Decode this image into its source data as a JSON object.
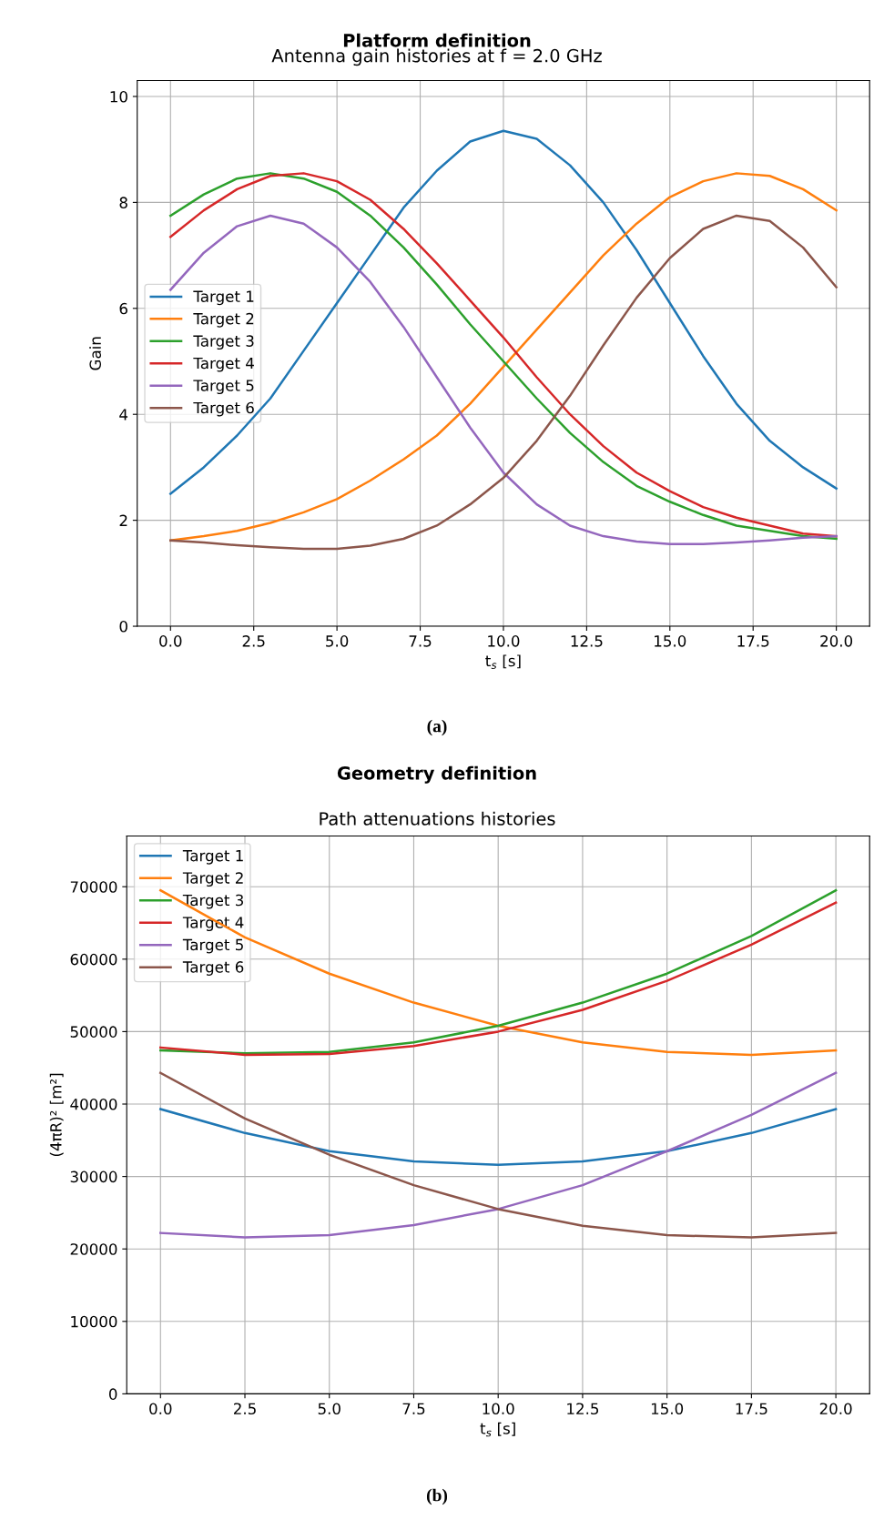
{
  "chart_data": [
    {
      "type": "line",
      "title": "Platform definition",
      "subtitle": "Antenna gain histories at f = 2.0 GHz",
      "xlabel": "t$_{s}$ [s]",
      "ylabel": "Gain",
      "annotations": [
        "(a)"
      ],
      "x": [
        0,
        1,
        2,
        3,
        4,
        5,
        6,
        7,
        8,
        9,
        10,
        11,
        12,
        13,
        14,
        15,
        16,
        17,
        18,
        19,
        20
      ],
      "xlim": [
        -1,
        21
      ],
      "xticks": [
        {
          "value": 0,
          "label": "0.0"
        },
        {
          "value": 2.5,
          "label": "2.5"
        },
        {
          "value": 5,
          "label": "5.0"
        },
        {
          "value": 7.5,
          "label": "7.5"
        },
        {
          "value": 10,
          "label": "10.0"
        },
        {
          "value": 12.5,
          "label": "12.5"
        },
        {
          "value": 15,
          "label": "15.0"
        },
        {
          "value": 17.5,
          "label": "17.5"
        },
        {
          "value": 20,
          "label": "20.0"
        }
      ],
      "ylim": [
        0,
        10.3
      ],
      "yticks": [
        0,
        2,
        4,
        6,
        8,
        10
      ],
      "grid": true,
      "legend": "left",
      "series": [
        {
          "name": "Target 1",
          "color": "#1f77b4",
          "values": [
            2.5,
            3.0,
            3.6,
            4.3,
            5.2,
            6.1,
            7.0,
            7.9,
            8.6,
            9.15,
            9.35,
            9.2,
            8.7,
            8.0,
            7.1,
            6.1,
            5.1,
            4.2,
            3.5,
            3.0,
            2.6
          ]
        },
        {
          "name": "Target 2",
          "color": "#ff7f0e",
          "values": [
            1.62,
            1.7,
            1.8,
            1.95,
            2.15,
            2.4,
            2.75,
            3.15,
            3.6,
            4.2,
            4.9,
            5.6,
            6.3,
            7.0,
            7.6,
            8.1,
            8.4,
            8.55,
            8.5,
            8.25,
            7.85
          ]
        },
        {
          "name": "Target 3",
          "color": "#2ca02c",
          "values": [
            7.75,
            8.15,
            8.45,
            8.55,
            8.45,
            8.2,
            7.75,
            7.15,
            6.45,
            5.7,
            5.0,
            4.3,
            3.65,
            3.1,
            2.65,
            2.35,
            2.1,
            1.9,
            1.8,
            1.7,
            1.65
          ]
        },
        {
          "name": "Target 4",
          "color": "#d62728",
          "values": [
            7.35,
            7.85,
            8.25,
            8.5,
            8.55,
            8.4,
            8.05,
            7.5,
            6.85,
            6.15,
            5.45,
            4.7,
            4.0,
            3.4,
            2.9,
            2.55,
            2.25,
            2.05,
            1.9,
            1.75,
            1.7
          ]
        },
        {
          "name": "Target 5",
          "color": "#9467bd",
          "values": [
            6.35,
            7.05,
            7.55,
            7.75,
            7.6,
            7.15,
            6.5,
            5.65,
            4.7,
            3.75,
            2.9,
            2.3,
            1.9,
            1.7,
            1.6,
            1.55,
            1.55,
            1.58,
            1.62,
            1.67,
            1.7
          ]
        },
        {
          "name": "Target 6",
          "color": "#8c564b",
          "values": [
            1.62,
            1.58,
            1.53,
            1.49,
            1.46,
            1.46,
            1.52,
            1.65,
            1.9,
            2.3,
            2.8,
            3.5,
            4.35,
            5.3,
            6.2,
            6.95,
            7.5,
            7.75,
            7.65,
            7.15,
            6.4
          ]
        }
      ]
    },
    {
      "type": "line",
      "title": "Geometry definition",
      "subtitle": "Path attenuations histories",
      "xlabel": "t$_{s}$ [s]",
      "ylabel": "(4πR)² [m²]",
      "annotations": [
        "(b)"
      ],
      "x": [
        0,
        2.5,
        5,
        7.5,
        10,
        12.5,
        15,
        17.5,
        20
      ],
      "xlim": [
        -1,
        21
      ],
      "xticks": [
        {
          "value": 0,
          "label": "0.0"
        },
        {
          "value": 2.5,
          "label": "2.5"
        },
        {
          "value": 5,
          "label": "5.0"
        },
        {
          "value": 7.5,
          "label": "7.5"
        },
        {
          "value": 10,
          "label": "10.0"
        },
        {
          "value": 12.5,
          "label": "12.5"
        },
        {
          "value": 15,
          "label": "15.0"
        },
        {
          "value": 17.5,
          "label": "17.5"
        },
        {
          "value": 20,
          "label": "20.0"
        }
      ],
      "ylim": [
        0,
        77000
      ],
      "yticks": [
        0,
        10000,
        20000,
        30000,
        40000,
        50000,
        60000,
        70000
      ],
      "grid": true,
      "legend": "top left",
      "series": [
        {
          "name": "Target 1",
          "color": "#1f77b4",
          "values": [
            39300,
            36000,
            33500,
            32100,
            31600,
            32100,
            33500,
            36000,
            39300
          ]
        },
        {
          "name": "Target 2",
          "color": "#ff7f0e",
          "values": [
            69500,
            63000,
            58000,
            54000,
            50800,
            48500,
            47200,
            46800,
            47400
          ]
        },
        {
          "name": "Target 3",
          "color": "#2ca02c",
          "values": [
            47400,
            47000,
            47200,
            48500,
            50800,
            54000,
            58000,
            63200,
            69500
          ]
        },
        {
          "name": "Target 4",
          "color": "#d62728",
          "values": [
            47800,
            46800,
            46900,
            48000,
            50000,
            53000,
            57000,
            62000,
            67800
          ]
        },
        {
          "name": "Target 5",
          "color": "#9467bd",
          "values": [
            22200,
            21600,
            21900,
            23300,
            25500,
            28800,
            33500,
            38500,
            44300
          ]
        },
        {
          "name": "Target 6",
          "color": "#8c564b",
          "values": [
            44300,
            38000,
            33000,
            28800,
            25500,
            23200,
            21900,
            21600,
            22200
          ]
        }
      ]
    }
  ]
}
